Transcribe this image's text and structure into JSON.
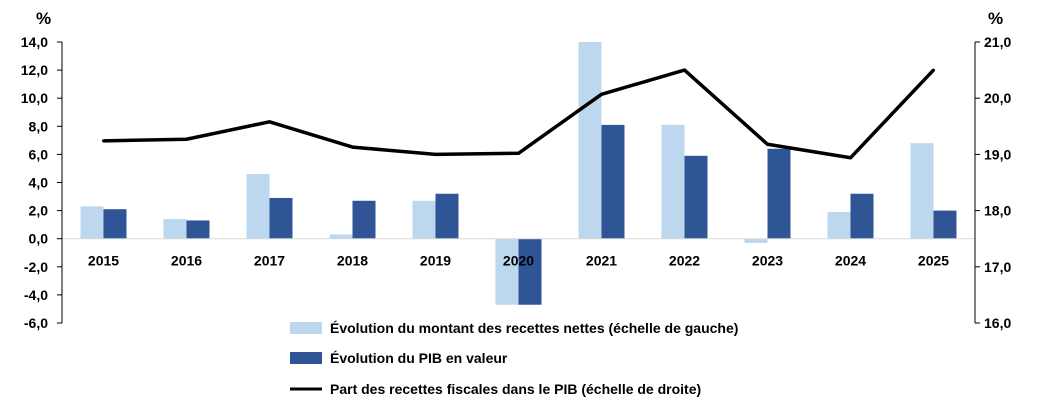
{
  "chart_data": {
    "type": "bar+line",
    "left_unit": "%",
    "right_unit": "%",
    "categories": [
      "2015",
      "2016",
      "2017",
      "2018",
      "2019",
      "2020",
      "2021",
      "2022",
      "2023",
      "2024",
      "2025"
    ],
    "ylim_left": [
      -6,
      14
    ],
    "yticks_left": [
      "14,0",
      "12,0",
      "10,0",
      "8,0",
      "6,0",
      "4,0",
      "2,0",
      "0,0",
      "-2,0",
      "-4,0",
      "-6,0"
    ],
    "ylim_right": [
      16,
      21
    ],
    "yticks_right": [
      "21,0",
      "20,0",
      "19,0",
      "18,0",
      "17,0",
      "16,0"
    ],
    "series": [
      {
        "name": "Évolution du montant des recettes nettes (échelle de gauche)",
        "type": "bar",
        "axis": "left",
        "color": "#BDD7EE",
        "values": [
          2.3,
          1.4,
          4.6,
          0.3,
          2.7,
          -4.7,
          14.0,
          8.1,
          -0.3,
          1.9,
          6.8
        ]
      },
      {
        "name": "Évolution du PIB en valeur",
        "type": "bar",
        "axis": "left",
        "color": "#2F5597",
        "values": [
          2.1,
          1.3,
          2.9,
          2.7,
          3.2,
          -4.7,
          8.1,
          5.9,
          6.4,
          3.2,
          2.0
        ]
      },
      {
        "name": "Part des recettes fiscales dans le PIB (échelle de droite)",
        "type": "line",
        "axis": "right",
        "color": "#000000",
        "values": [
          19.24,
          19.27,
          19.58,
          19.13,
          19.0,
          19.02,
          20.07,
          20.5,
          19.18,
          18.94,
          20.5
        ]
      }
    ],
    "legend_position": "bottom-center"
  }
}
